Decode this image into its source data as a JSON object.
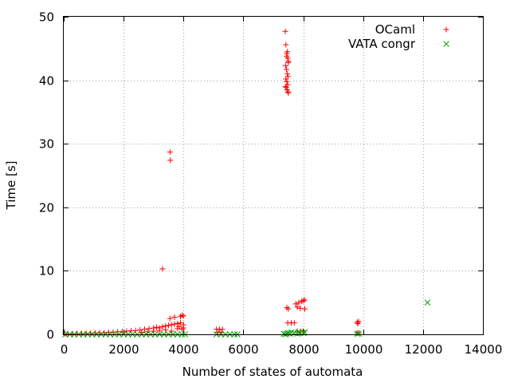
{
  "chart_data": {
    "type": "scatter",
    "xlabel": "Number of states of automata",
    "ylabel": "Time [s]",
    "xlim": [
      0,
      14000
    ],
    "ylim": [
      0,
      50
    ],
    "xticks": [
      "0",
      "2000",
      "4000",
      "6000",
      "8000",
      "10000",
      "12000",
      "14000"
    ],
    "yticks": [
      "0",
      "10",
      "20",
      "30",
      "40",
      "50"
    ],
    "grid": true,
    "legend_position": "top-right",
    "series": [
      {
        "name": "OCaml",
        "marker": "+",
        "color": "#ff0000",
        "points": [
          [
            50,
            0.05
          ],
          [
            150,
            0.05
          ],
          [
            300,
            0.08
          ],
          [
            450,
            0.1
          ],
          [
            600,
            0.12
          ],
          [
            750,
            0.15
          ],
          [
            900,
            0.18
          ],
          [
            1050,
            0.2
          ],
          [
            1200,
            0.22
          ],
          [
            1350,
            0.25
          ],
          [
            1500,
            0.3
          ],
          [
            1650,
            0.35
          ],
          [
            1800,
            0.4
          ],
          [
            1950,
            0.45
          ],
          [
            2100,
            0.5
          ],
          [
            2250,
            0.55
          ],
          [
            2400,
            0.6
          ],
          [
            2550,
            0.7
          ],
          [
            2700,
            0.8
          ],
          [
            2850,
            0.9
          ],
          [
            3000,
            1.0
          ],
          [
            3100,
            1.1
          ],
          [
            3200,
            1.0
          ],
          [
            3300,
            1.2
          ],
          [
            3400,
            1.3
          ],
          [
            3500,
            1.4
          ],
          [
            3600,
            1.5
          ],
          [
            3700,
            1.6
          ],
          [
            3800,
            1.7
          ],
          [
            3900,
            1.8
          ],
          [
            4000,
            1.5
          ],
          [
            2600,
            0.3
          ],
          [
            2800,
            0.4
          ],
          [
            3000,
            0.5
          ],
          [
            3200,
            0.6
          ],
          [
            3400,
            0.7
          ],
          [
            3600,
            0.5
          ],
          [
            3800,
            0.9
          ],
          [
            4000,
            1.0
          ],
          [
            3300,
            10.3
          ],
          [
            3550,
            28.7
          ],
          [
            3560,
            27.4
          ],
          [
            3550,
            2.5
          ],
          [
            3700,
            2.7
          ],
          [
            3900,
            2.8
          ],
          [
            3950,
            3.0
          ],
          [
            4000,
            2.9
          ],
          [
            3850,
            1.2
          ],
          [
            3950,
            0.8
          ],
          [
            5100,
            0.8
          ],
          [
            5200,
            0.8
          ],
          [
            5300,
            0.8
          ],
          [
            5150,
            0.3
          ],
          [
            5250,
            0.3
          ],
          [
            7400,
            47.7
          ],
          [
            7420,
            45.6
          ],
          [
            7450,
            44.2
          ],
          [
            7480,
            43.5
          ],
          [
            7500,
            42.8
          ],
          [
            7410,
            42.3
          ],
          [
            7440,
            41.7
          ],
          [
            7470,
            41.0
          ],
          [
            7490,
            40.6
          ],
          [
            7420,
            40.2
          ],
          [
            7450,
            39.8
          ],
          [
            7480,
            39.3
          ],
          [
            7430,
            38.9
          ],
          [
            7460,
            38.5
          ],
          [
            7490,
            38.2
          ],
          [
            7500,
            43.0
          ],
          [
            7440,
            43.8
          ],
          [
            7470,
            44.5
          ],
          [
            7410,
            39.0
          ],
          [
            7500,
            38.0
          ],
          [
            7450,
            4.2
          ],
          [
            7500,
            4.0
          ],
          [
            7480,
            1.8
          ],
          [
            7600,
            1.8
          ],
          [
            7700,
            1.8
          ],
          [
            7750,
            4.8
          ],
          [
            7800,
            4.3
          ],
          [
            7850,
            5.0
          ],
          [
            7900,
            4.1
          ],
          [
            7950,
            5.2
          ],
          [
            8000,
            5.3
          ],
          [
            8050,
            5.4
          ],
          [
            8050,
            4.0
          ],
          [
            7800,
            0.5
          ],
          [
            7900,
            0.5
          ],
          [
            8000,
            0.5
          ],
          [
            9800,
            1.9
          ],
          [
            9820,
            1.7
          ],
          [
            9850,
            2.0
          ],
          [
            9800,
            0.2
          ],
          [
            9850,
            0.2
          ]
        ]
      },
      {
        "name": "VATA congr",
        "marker": "x",
        "color": "#00a000",
        "points": [
          [
            50,
            0.0
          ],
          [
            200,
            0.0
          ],
          [
            350,
            0.0
          ],
          [
            500,
            0.0
          ],
          [
            650,
            0.0
          ],
          [
            800,
            0.0
          ],
          [
            950,
            0.0
          ],
          [
            1100,
            0.0
          ],
          [
            1250,
            0.0
          ],
          [
            1400,
            0.0
          ],
          [
            1550,
            0.0
          ],
          [
            1700,
            0.0
          ],
          [
            1850,
            0.0
          ],
          [
            2000,
            0.0
          ],
          [
            2150,
            0.0
          ],
          [
            2300,
            0.0
          ],
          [
            2450,
            0.0
          ],
          [
            2600,
            0.0
          ],
          [
            2750,
            0.0
          ],
          [
            2900,
            0.0
          ],
          [
            3050,
            0.0
          ],
          [
            3200,
            0.0
          ],
          [
            3350,
            0.0
          ],
          [
            3500,
            0.0
          ],
          [
            3650,
            0.0
          ],
          [
            3800,
            0.0
          ],
          [
            3950,
            0.0
          ],
          [
            4050,
            0.0
          ],
          [
            5100,
            0.0
          ],
          [
            5250,
            0.0
          ],
          [
            5400,
            0.0
          ],
          [
            5550,
            0.0
          ],
          [
            5700,
            0.0
          ],
          [
            5800,
            0.0
          ],
          [
            7350,
            0.1
          ],
          [
            7400,
            0.0
          ],
          [
            7450,
            0.1
          ],
          [
            7500,
            0.2
          ],
          [
            7550,
            0.1
          ],
          [
            7600,
            0.3
          ],
          [
            7700,
            0.2
          ],
          [
            7800,
            0.1
          ],
          [
            7850,
            0.3
          ],
          [
            7900,
            0.2
          ],
          [
            8000,
            0.2
          ],
          [
            8050,
            0.3
          ],
          [
            9800,
            0.1
          ],
          [
            9850,
            0.1
          ],
          [
            12150,
            5.0
          ]
        ]
      }
    ]
  }
}
